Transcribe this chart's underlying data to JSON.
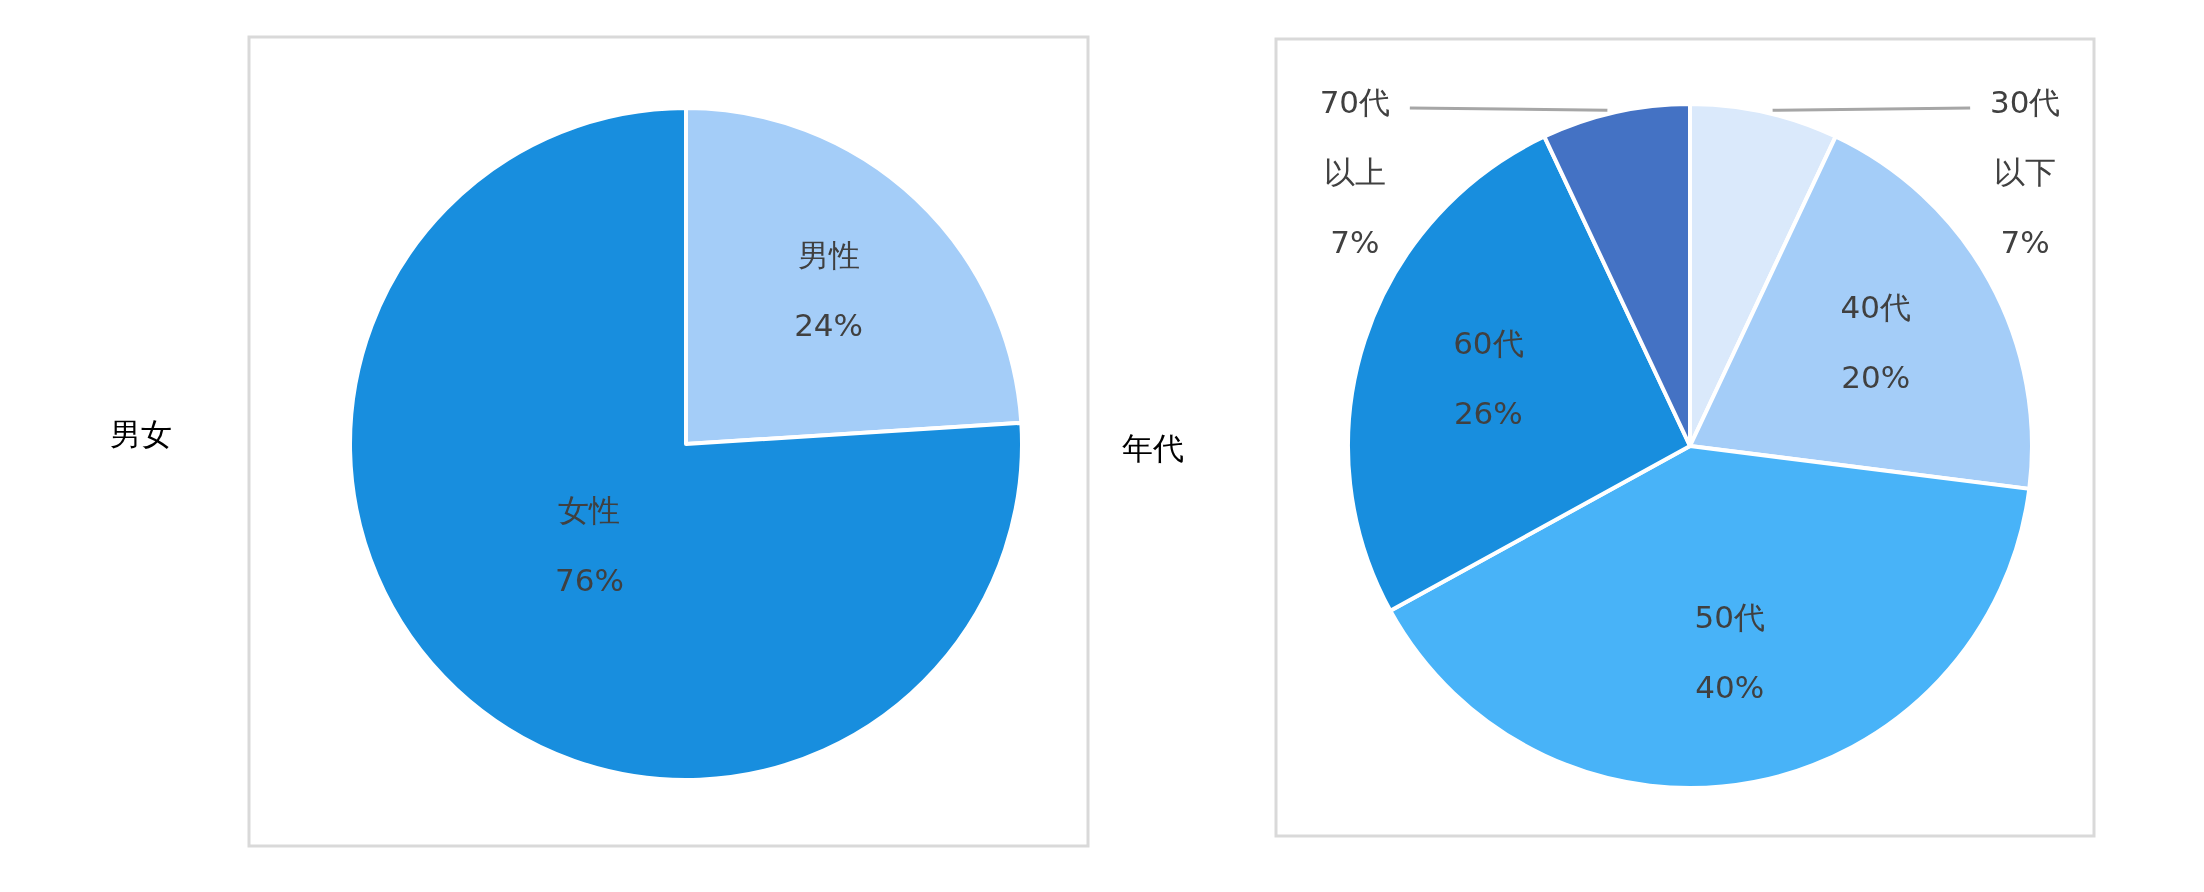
{
  "chart_data": [
    {
      "type": "pie",
      "title": "男女",
      "categories": [
        "男性",
        "女性"
      ],
      "values": [
        24,
        76
      ],
      "value_labels": [
        "24%",
        "76%"
      ],
      "colors": [
        "#a4cdf8",
        "#188ede"
      ]
    },
    {
      "type": "pie",
      "title": "年代",
      "categories": [
        "30代以下",
        "40代",
        "50代",
        "60代",
        "70代以上"
      ],
      "values": [
        7,
        20,
        40,
        26,
        7
      ],
      "value_labels": [
        "7%",
        "20%",
        "40%",
        "26%",
        "7%"
      ],
      "colors": [
        "#dae9fb",
        "#a4cdf8",
        "#48b3f8",
        "#188ede",
        "#4472c4"
      ]
    }
  ]
}
